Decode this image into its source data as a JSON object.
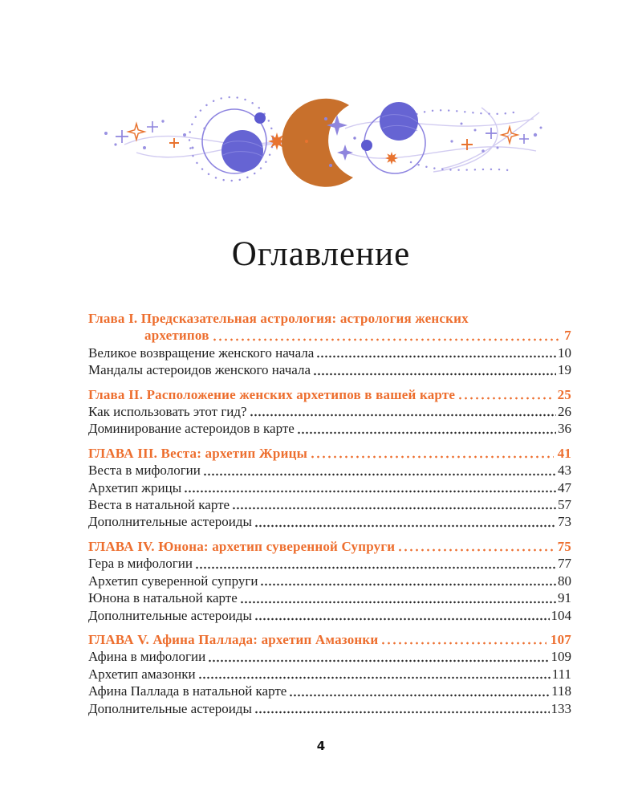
{
  "colors": {
    "heading_orange": "#ed6e2e",
    "moon_orange": "#c8702c",
    "planet_purple": "#6664d3",
    "orbit_purple": "#8d84e0",
    "lavender_line": "#d2ccf1",
    "dot_purple": "#9a92e2",
    "body_text": "#1f1f1f"
  },
  "illustration": {
    "name": "celestial-divider",
    "elements": [
      "crescent-moon",
      "orbiting-planet-left",
      "orbiting-planet-right",
      "sparkle-stars",
      "dotted-trails"
    ]
  },
  "title": "Оглавление",
  "footer": {
    "page_number": "4"
  },
  "toc": {
    "sections": [
      {
        "heading": {
          "lines": [
            "Глава I. Предсказательная астрология: астрология женских",
            "архетипов"
          ],
          "page": "7"
        },
        "entries": [
          {
            "label": "Великое возвращение женского начала",
            "page": "10"
          },
          {
            "label": "Мандалы астероидов женского начала",
            "page": "19"
          }
        ]
      },
      {
        "heading": {
          "lines": [
            "Глава II. Расположение женских архетипов в вашей карте"
          ],
          "page": "25"
        },
        "entries": [
          {
            "label": "Как использовать этот гид?",
            "page": "26"
          },
          {
            "label": "Доминирование астероидов в карте",
            "page": "36"
          }
        ]
      },
      {
        "heading": {
          "lines": [
            "ГЛАВА III. Веста: архетип Жрицы"
          ],
          "page": "41"
        },
        "entries": [
          {
            "label": "Веста в мифологии",
            "page": "43"
          },
          {
            "label": "Архетип жрицы",
            "page": "47"
          },
          {
            "label": "Веста в натальной карте",
            "page": "57"
          },
          {
            "label": "Дополнительные астероиды",
            "page": "73"
          }
        ]
      },
      {
        "heading": {
          "lines": [
            "ГЛАВА IV. Юнона: архетип суверенной Супруги"
          ],
          "page": "75"
        },
        "entries": [
          {
            "label": "Гера в мифологии",
            "page": "77"
          },
          {
            "label": "Архетип суверенной супруги",
            "page": "80"
          },
          {
            "label": "Юнона в натальной карте",
            "page": "91"
          },
          {
            "label": "Дополнительные астероиды",
            "page": "104"
          }
        ]
      },
      {
        "heading": {
          "lines": [
            "ГЛАВА V. Афина Паллада: архетип Амазонки"
          ],
          "page": "107"
        },
        "entries": [
          {
            "label": "Афина в мифологии",
            "page": "109"
          },
          {
            "label": "Архетип амазонки",
            "page": "111"
          },
          {
            "label": "Афина Паллада в натальной карте",
            "page": "118"
          },
          {
            "label": "Дополнительные астероиды",
            "page": "133"
          }
        ]
      }
    ]
  }
}
